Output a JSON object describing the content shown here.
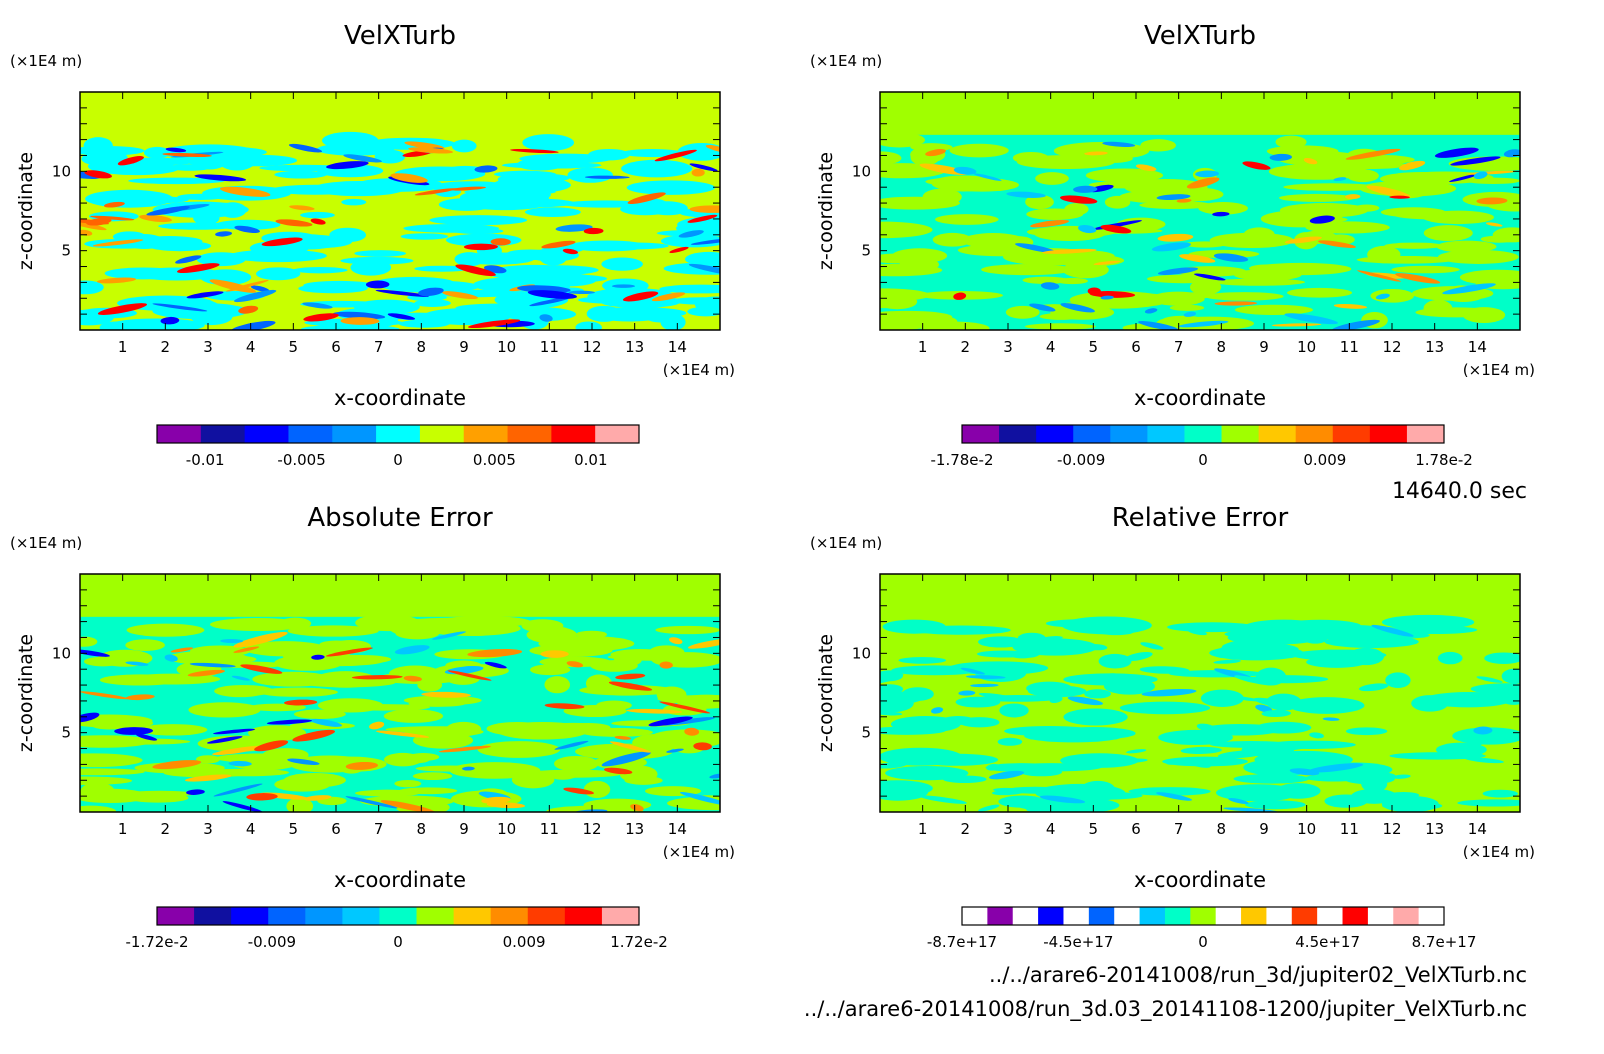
{
  "chart_data": [
    {
      "type": "heatmap",
      "title": "VelXTurb",
      "xlabel": "x-coordinate",
      "ylabel": "z-coordinate",
      "x_unit": "(×1E4 m)",
      "y_unit": "(×1E4 m)",
      "xlim": [
        0,
        15
      ],
      "ylim": [
        0,
        15
      ],
      "x_ticks": [
        "1",
        "2",
        "3",
        "4",
        "5",
        "6",
        "7",
        "8",
        "9",
        "10",
        "11",
        "12",
        "13",
        "14"
      ],
      "y_ticks": [
        "5",
        "10"
      ],
      "colorbar": {
        "colors": [
          "#8800aa",
          "#1010a0",
          "#0000ff",
          "#0064ff",
          "#0096ff",
          "#00ffff",
          "#c8ff00",
          "#ffa000",
          "#ff6400",
          "#ff0000",
          "#ffaaaa"
        ],
        "tick_labels": [
          "-0.01",
          "-0.005",
          "0",
          "0.005",
          "0.01"
        ],
        "tick_values": [
          -0.01,
          -0.005,
          0,
          0.005,
          0.01
        ],
        "range": [
          -0.0125,
          0.0125
        ]
      }
    },
    {
      "type": "heatmap",
      "title": "VelXTurb",
      "xlabel": "x-coordinate",
      "ylabel": "z-coordinate",
      "x_unit": "(×1E4 m)",
      "y_unit": "(×1E4 m)",
      "xlim": [
        0,
        15
      ],
      "ylim": [
        0,
        15
      ],
      "x_ticks": [
        "1",
        "2",
        "3",
        "4",
        "5",
        "6",
        "7",
        "8",
        "9",
        "10",
        "11",
        "12",
        "13",
        "14"
      ],
      "y_ticks": [
        "5",
        "10"
      ],
      "colorbar": {
        "colors": [
          "#8800aa",
          "#1010a0",
          "#0000ff",
          "#0064ff",
          "#0096ff",
          "#00c8ff",
          "#00ffc8",
          "#a0ff00",
          "#ffc800",
          "#ff8c00",
          "#ff3c00",
          "#ff0000",
          "#ffaaaa"
        ],
        "tick_labels": [
          "-1.78e-2",
          "-0.009",
          "0",
          "0.009",
          "1.78e-2"
        ],
        "tick_values": [
          -0.0178,
          -0.009,
          0,
          0.009,
          0.0178
        ],
        "range": [
          -0.0178,
          0.0178
        ]
      }
    },
    {
      "type": "heatmap",
      "title": "Absolute Error",
      "xlabel": "x-coordinate",
      "ylabel": "z-coordinate",
      "x_unit": "(×1E4 m)",
      "y_unit": "(×1E4 m)",
      "xlim": [
        0,
        15
      ],
      "ylim": [
        0,
        15
      ],
      "x_ticks": [
        "1",
        "2",
        "3",
        "4",
        "5",
        "6",
        "7",
        "8",
        "9",
        "10",
        "11",
        "12",
        "13",
        "14"
      ],
      "y_ticks": [
        "5",
        "10"
      ],
      "colorbar": {
        "colors": [
          "#8800aa",
          "#1010a0",
          "#0000ff",
          "#0064ff",
          "#0096ff",
          "#00c8ff",
          "#00ffc8",
          "#a0ff00",
          "#ffc800",
          "#ff8c00",
          "#ff3c00",
          "#ff0000",
          "#ffaaaa"
        ],
        "tick_labels": [
          "-1.72e-2",
          "-0.009",
          "0",
          "0.009",
          "1.72e-2"
        ],
        "tick_values": [
          -0.0172,
          -0.009,
          0,
          0.009,
          0.0172
        ],
        "range": [
          -0.0172,
          0.0172
        ]
      }
    },
    {
      "type": "heatmap",
      "title": "Relative Error",
      "xlabel": "x-coordinate",
      "ylabel": "z-coordinate",
      "x_unit": "(×1E4 m)",
      "y_unit": "(×1E4 m)",
      "xlim": [
        0,
        15
      ],
      "ylim": [
        0,
        15
      ],
      "x_ticks": [
        "1",
        "2",
        "3",
        "4",
        "5",
        "6",
        "7",
        "8",
        "9",
        "10",
        "11",
        "12",
        "13",
        "14"
      ],
      "y_ticks": [
        "5",
        "10"
      ],
      "colorbar": {
        "colors": [
          "#ffffff",
          "#8800aa",
          "#ffffff",
          "#0000ff",
          "#ffffff",
          "#0064ff",
          "#ffffff",
          "#00c8ff",
          "#00ffc8",
          "#a0ff00",
          "#ffffff",
          "#ffc800",
          "#ffffff",
          "#ff3c00",
          "#ffffff",
          "#ff0000",
          "#ffffff",
          "#ffaaaa",
          "#ffffff"
        ],
        "tick_labels": [
          "-8.7e+17",
          "-4.5e+17",
          "0",
          "4.5e+17",
          "8.7e+17"
        ],
        "tick_values": [
          -8.7e+17,
          -4.5e+17,
          0,
          4.5e+17,
          8.7e+17
        ],
        "range": [
          -8.7e+17,
          8.7e+17
        ]
      }
    }
  ],
  "time_label": "14640.0 sec",
  "files": [
    "../../arare6-20141008/run_3d/jupiter02_VelXTurb.nc",
    "../../arare6-20141008/run_3d.03_20141108-1200/jupiter_VelXTurb.nc"
  ]
}
